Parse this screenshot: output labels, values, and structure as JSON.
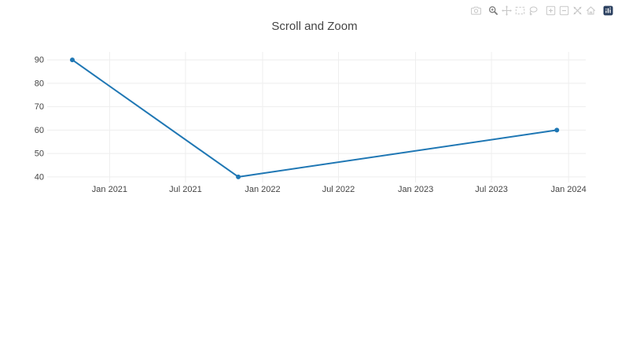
{
  "page": {
    "background": "#ffffff"
  },
  "modebar": {
    "icon_color": "#c7c7c7",
    "active_icon_color": "#7c7c7c",
    "logo_color": "#2a3f5f",
    "buttons": [
      {
        "id": "download-png",
        "icon": "camera-icon",
        "active": false
      },
      {
        "id": "zoom",
        "icon": "magnifier-icon",
        "active": true
      },
      {
        "id": "pan",
        "icon": "pan-arrows-icon",
        "active": false
      },
      {
        "id": "box-select",
        "icon": "dashed-box-icon",
        "active": false
      },
      {
        "id": "lasso-select",
        "icon": "lasso-icon",
        "active": false
      },
      {
        "id": "zoom-in",
        "icon": "plus-square-icon",
        "active": false
      },
      {
        "id": "zoom-out",
        "icon": "minus-square-icon",
        "active": false
      },
      {
        "id": "autoscale",
        "icon": "expand-arrows-icon",
        "active": false
      },
      {
        "id": "reset-axes",
        "icon": "home-icon",
        "active": false
      },
      {
        "id": "plotly-logo",
        "icon": "plotly-logomark-icon",
        "active": false
      }
    ]
  },
  "chart_data": {
    "type": "line",
    "title": "Scroll and Zoom",
    "x": [
      "2020-10-04",
      "2021-11-04",
      "2023-12-04"
    ],
    "y": [
      90,
      40,
      60
    ],
    "xaxis": {
      "type": "date",
      "range": [
        "2020-08-05",
        "2024-02-11"
      ],
      "ticks": [
        {
          "date": "2021-01-01",
          "label": "Jan 2021"
        },
        {
          "date": "2021-07-01",
          "label": "Jul 2021"
        },
        {
          "date": "2022-01-01",
          "label": "Jan 2022"
        },
        {
          "date": "2022-07-01",
          "label": "Jul 2022"
        },
        {
          "date": "2023-01-01",
          "label": "Jan 2023"
        },
        {
          "date": "2023-07-01",
          "label": "Jul 2023"
        },
        {
          "date": "2024-01-01",
          "label": "Jan 2024"
        }
      ]
    },
    "yaxis": {
      "range": [
        37.6,
        93.4
      ],
      "ticks": [
        {
          "value": 40,
          "label": "40"
        },
        {
          "value": 50,
          "label": "50"
        },
        {
          "value": 60,
          "label": "60"
        },
        {
          "value": 70,
          "label": "70"
        },
        {
          "value": 80,
          "label": "80"
        },
        {
          "value": 90,
          "label": "90"
        }
      ]
    },
    "grid": true,
    "legend": false,
    "colors": {
      "line": "#1f77b4",
      "grid": "#eeeeee",
      "text": "#444444"
    }
  }
}
